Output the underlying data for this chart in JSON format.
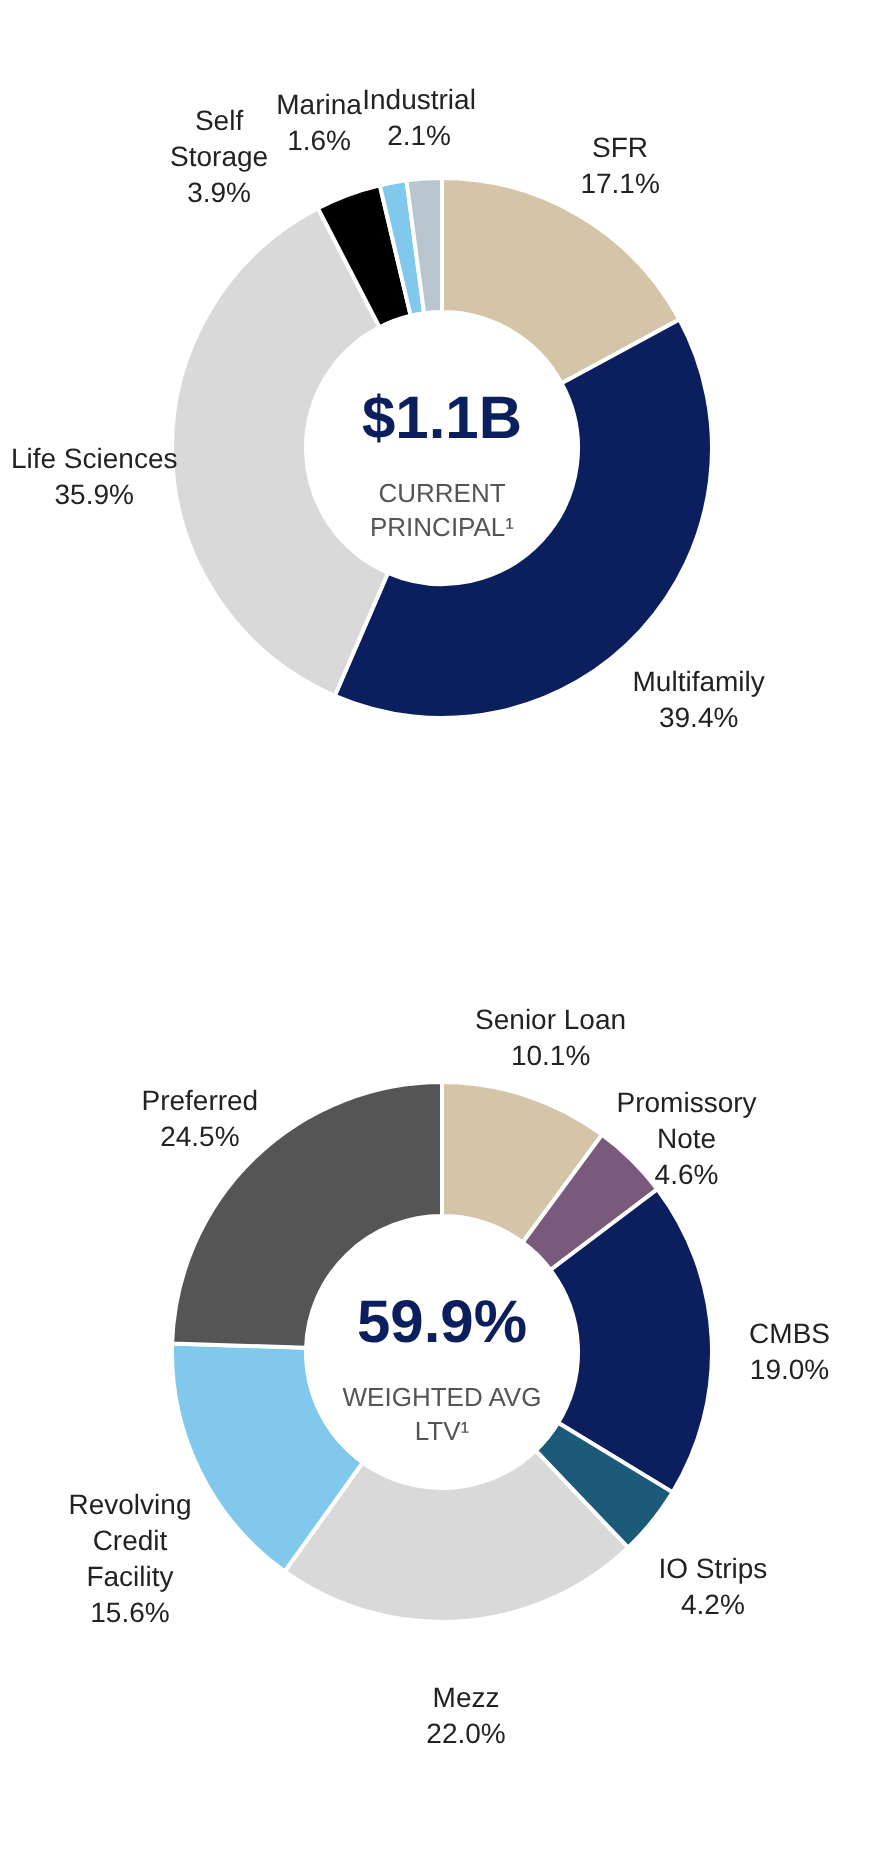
{
  "chart_data": [
    {
      "type": "donut",
      "categories": [
        "SFR",
        "Multifamily",
        "Life Sciences",
        "Self\nStorage",
        "Marina",
        "Industrial"
      ],
      "values": [
        17.1,
        39.4,
        35.9,
        3.9,
        1.6,
        2.1
      ],
      "value_labels": [
        "17.1%",
        "39.4%",
        "35.9%",
        "3.9%",
        "1.6%",
        "2.1%"
      ],
      "colors": [
        "#d5c5a8",
        "#0b1f5e",
        "#d9d9d9",
        "#000000",
        "#80c8ec",
        "#b8c4ce"
      ],
      "annotations": [
        "$1.1B",
        "CURRENT",
        "PRINCIPAL¹"
      ],
      "legend": false
    },
    {
      "type": "donut",
      "categories": [
        "Senior Loan",
        "Promissory\nNote",
        "CMBS",
        "IO Strips",
        "Mezz",
        "Revolving\nCredit\nFacility",
        "Preferred"
      ],
      "values": [
        10.1,
        4.6,
        19.0,
        4.2,
        22.0,
        15.6,
        24.5
      ],
      "value_labels": [
        "10.1%",
        "4.6%",
        "19.0%",
        "4.2%",
        "22.0%",
        "15.6%",
        "24.5%"
      ],
      "colors": [
        "#d5c5a8",
        "#7a5a7c",
        "#0b1f5e",
        "#1b5a78",
        "#d9d9d9",
        "#80c8ec",
        "#555555"
      ],
      "annotations": [
        "59.9%",
        "WEIGHTED AVG",
        "LTV¹"
      ],
      "legend": false
    }
  ]
}
